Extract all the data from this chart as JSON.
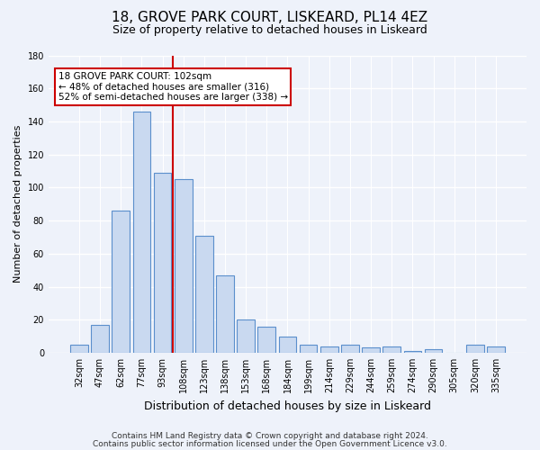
{
  "title1": "18, GROVE PARK COURT, LISKEARD, PL14 4EZ",
  "title2": "Size of property relative to detached houses in Liskeard",
  "xlabel": "Distribution of detached houses by size in Liskeard",
  "ylabel": "Number of detached properties",
  "categories": [
    "32sqm",
    "47sqm",
    "62sqm",
    "77sqm",
    "93sqm",
    "108sqm",
    "123sqm",
    "138sqm",
    "153sqm",
    "168sqm",
    "184sqm",
    "199sqm",
    "214sqm",
    "229sqm",
    "244sqm",
    "259sqm",
    "274sqm",
    "290sqm",
    "305sqm",
    "320sqm",
    "335sqm"
  ],
  "values": [
    5,
    17,
    86,
    146,
    109,
    105,
    71,
    47,
    20,
    16,
    10,
    5,
    4,
    5,
    3,
    4,
    1,
    2,
    0,
    5,
    4
  ],
  "bar_color": "#c9d9f0",
  "bar_edge_color": "#5b8fcc",
  "vline_color": "#cc0000",
  "vline_x_index": 4.5,
  "annotation_text": "18 GROVE PARK COURT: 102sqm\n← 48% of detached houses are smaller (316)\n52% of semi-detached houses are larger (338) →",
  "annotation_box_color": "#ffffff",
  "annotation_box_edge_color": "#cc0000",
  "ylim": [
    0,
    180
  ],
  "yticks": [
    0,
    20,
    40,
    60,
    80,
    100,
    120,
    140,
    160,
    180
  ],
  "footnote1": "Contains HM Land Registry data © Crown copyright and database right 2024.",
  "footnote2": "Contains public sector information licensed under the Open Government Licence v3.0.",
  "background_color": "#eef2fa",
  "grid_color": "#ffffff",
  "title1_fontsize": 11,
  "title2_fontsize": 9,
  "xlabel_fontsize": 9,
  "ylabel_fontsize": 8,
  "tick_fontsize": 7,
  "annotation_fontsize": 7.5,
  "footnote_fontsize": 6.5
}
